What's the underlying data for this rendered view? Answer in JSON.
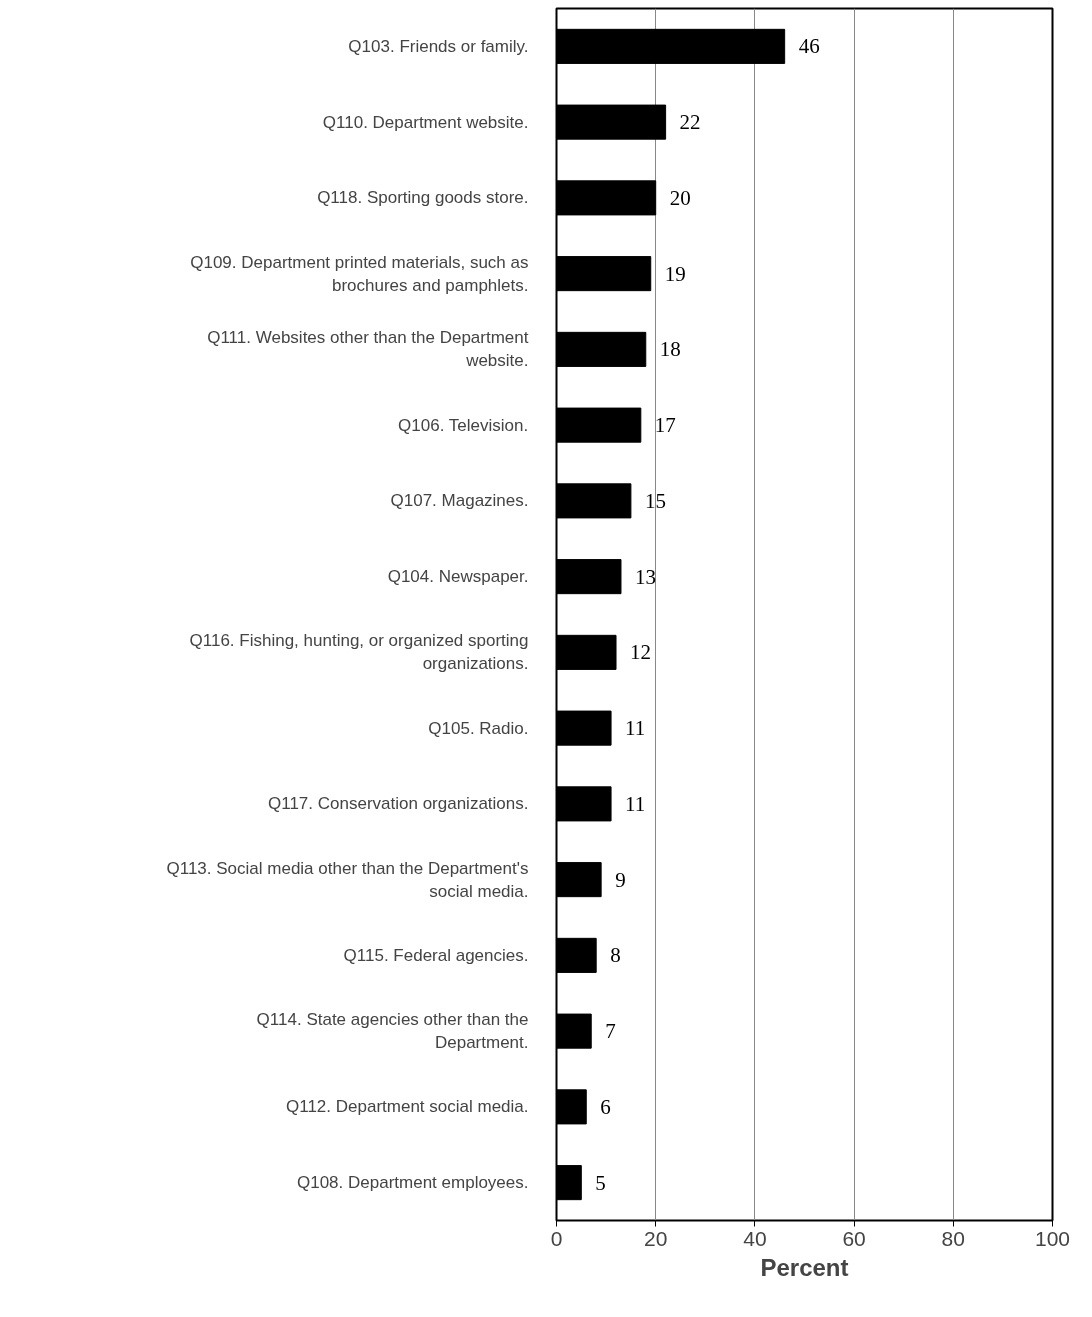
{
  "chart_data": {
    "type": "bar",
    "orientation": "horizontal",
    "xlabel": "Percent",
    "categories": [
      "Q103. Friends or family.",
      "Q110. Department website.",
      "Q118. Sporting goods store.",
      "Q109. Department printed materials, such as brochures and pamphlets.",
      "Q111. Websites other than the Department website.",
      "Q106. Television.",
      "Q107. Magazines.",
      "Q104. Newspaper.",
      "Q116. Fishing, hunting, or organized sporting organizations.",
      "Q105. Radio.",
      "Q117. Conservation organizations.",
      "Q113. Social media other than the Department's social media.",
      "Q115. Federal agencies.",
      "Q114. State agencies other than the Department.",
      "Q112. Department social media.",
      "Q108. Department employees."
    ],
    "values": [
      46,
      22,
      20,
      19,
      18,
      17,
      15,
      13,
      12,
      11,
      11,
      9,
      8,
      7,
      6,
      5
    ],
    "color": "#000000",
    "xlim": [
      0,
      100
    ],
    "xticks": [
      0,
      20,
      40,
      60,
      80,
      100
    ],
    "grid": "x",
    "data_labels": true
  }
}
